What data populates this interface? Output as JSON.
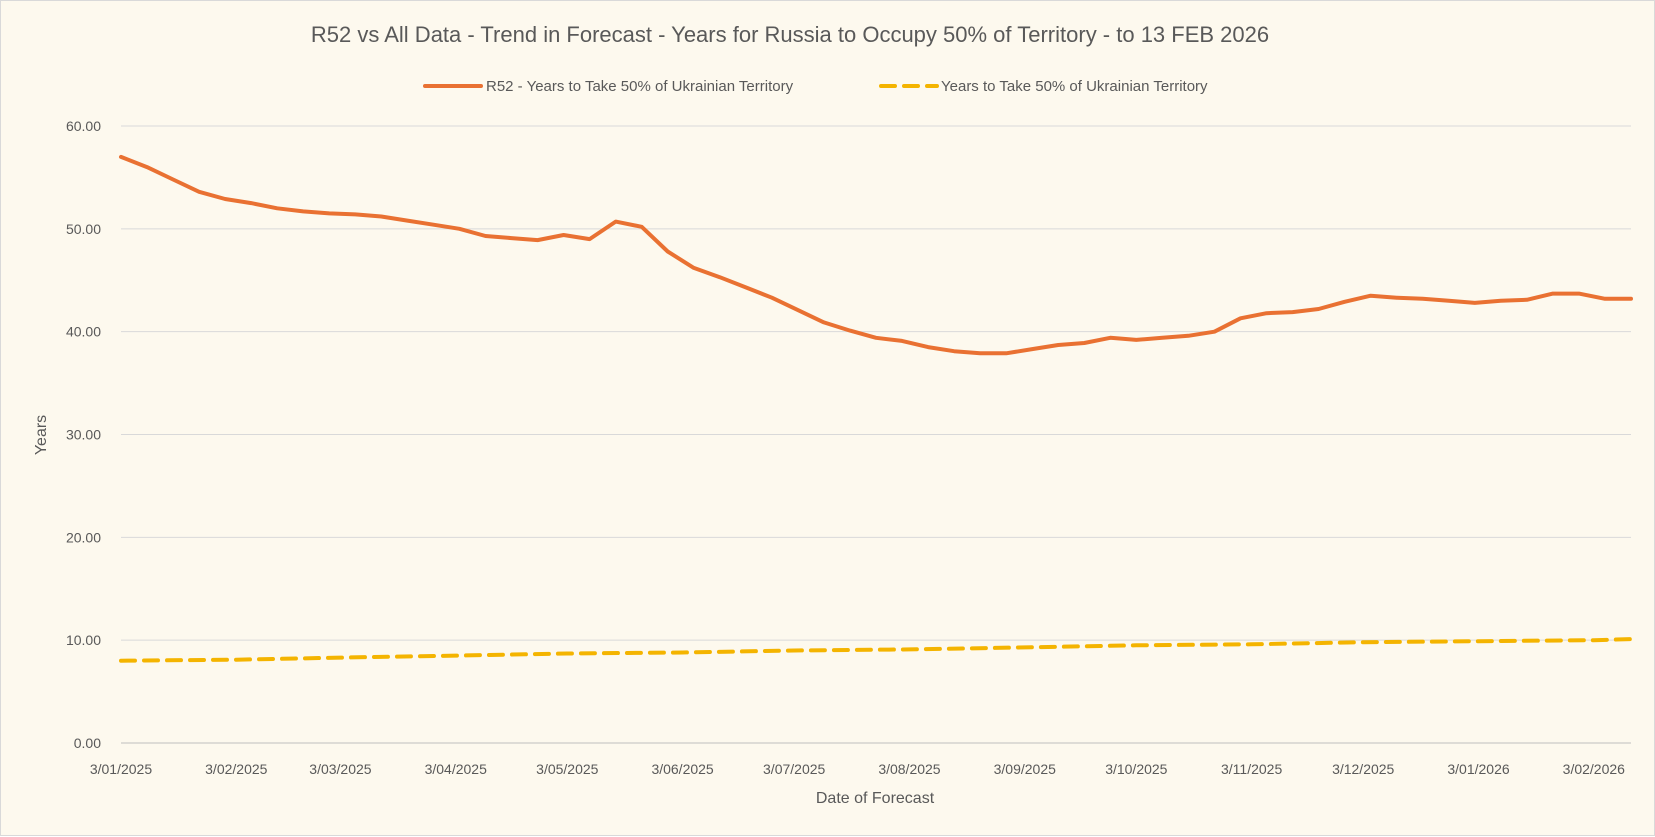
{
  "chart_data": {
    "type": "line",
    "title": "R52 vs All Data  - Trend in Forecast - Years for Russia to Occupy 50% of Territory - to 13 FEB 2026",
    "xlabel": "Date of Forecast",
    "ylabel": "Years",
    "ylim": [
      0,
      60
    ],
    "y_ticks": [
      "0.00",
      "10.00",
      "20.00",
      "30.00",
      "40.00",
      "50.00",
      "60.00"
    ],
    "x_range": [
      "2025-01-03",
      "2026-02-13"
    ],
    "x_ticks": [
      {
        "date": "2025-01-03",
        "label": "3/01/2025"
      },
      {
        "date": "2025-02-03",
        "label": "3/02/2025"
      },
      {
        "date": "2025-03-03",
        "label": "3/03/2025"
      },
      {
        "date": "2025-04-03",
        "label": "3/04/2025"
      },
      {
        "date": "2025-05-03",
        "label": "3/05/2025"
      },
      {
        "date": "2025-06-03",
        "label": "3/06/2025"
      },
      {
        "date": "2025-07-03",
        "label": "3/07/2025"
      },
      {
        "date": "2025-08-03",
        "label": "3/08/2025"
      },
      {
        "date": "2025-09-03",
        "label": "3/09/2025"
      },
      {
        "date": "2025-10-03",
        "label": "3/10/2025"
      },
      {
        "date": "2025-11-03",
        "label": "3/11/2025"
      },
      {
        "date": "2025-12-03",
        "label": "3/12/2025"
      },
      {
        "date": "2026-01-03",
        "label": "3/01/2026"
      },
      {
        "date": "2026-02-03",
        "label": "3/02/2026"
      }
    ],
    "grid": true,
    "legend_position": "top",
    "series": [
      {
        "name": "R52 - Years to Take  50% of Ukrainian Territory",
        "color": "#e97132",
        "style": "solid",
        "points": [
          [
            "2025-01-03",
            57.0
          ],
          [
            "2025-01-10",
            56.0
          ],
          [
            "2025-01-17",
            54.8
          ],
          [
            "2025-01-24",
            53.6
          ],
          [
            "2025-01-31",
            52.9
          ],
          [
            "2025-02-07",
            52.5
          ],
          [
            "2025-02-14",
            52.0
          ],
          [
            "2025-02-21",
            51.7
          ],
          [
            "2025-02-28",
            51.5
          ],
          [
            "2025-03-07",
            51.4
          ],
          [
            "2025-03-14",
            51.2
          ],
          [
            "2025-03-21",
            50.8
          ],
          [
            "2025-03-28",
            50.4
          ],
          [
            "2025-04-04",
            50.0
          ],
          [
            "2025-04-11",
            49.3
          ],
          [
            "2025-04-18",
            49.1
          ],
          [
            "2025-04-25",
            48.9
          ],
          [
            "2025-05-02",
            49.4
          ],
          [
            "2025-05-09",
            49.0
          ],
          [
            "2025-05-16",
            50.7
          ],
          [
            "2025-05-23",
            50.2
          ],
          [
            "2025-05-30",
            47.8
          ],
          [
            "2025-06-06",
            46.2
          ],
          [
            "2025-06-13",
            45.3
          ],
          [
            "2025-06-20",
            44.3
          ],
          [
            "2025-06-27",
            43.3
          ],
          [
            "2025-07-04",
            42.1
          ],
          [
            "2025-07-11",
            40.9
          ],
          [
            "2025-07-18",
            40.1
          ],
          [
            "2025-07-25",
            39.4
          ],
          [
            "2025-08-01",
            39.1
          ],
          [
            "2025-08-08",
            38.5
          ],
          [
            "2025-08-15",
            38.1
          ],
          [
            "2025-08-22",
            37.9
          ],
          [
            "2025-08-29",
            37.9
          ],
          [
            "2025-09-05",
            38.3
          ],
          [
            "2025-09-12",
            38.7
          ],
          [
            "2025-09-19",
            38.9
          ],
          [
            "2025-09-26",
            39.4
          ],
          [
            "2025-10-03",
            39.2
          ],
          [
            "2025-10-10",
            39.4
          ],
          [
            "2025-10-17",
            39.6
          ],
          [
            "2025-10-24",
            40.0
          ],
          [
            "2025-10-31",
            41.3
          ],
          [
            "2025-11-07",
            41.8
          ],
          [
            "2025-11-14",
            41.9
          ],
          [
            "2025-11-21",
            42.2
          ],
          [
            "2025-11-28",
            42.9
          ],
          [
            "2025-12-05",
            43.5
          ],
          [
            "2025-12-12",
            43.3
          ],
          [
            "2025-12-19",
            43.2
          ],
          [
            "2025-12-26",
            43.0
          ],
          [
            "2026-01-02",
            42.8
          ],
          [
            "2026-01-09",
            43.0
          ],
          [
            "2026-01-16",
            43.1
          ],
          [
            "2026-01-23",
            43.7
          ],
          [
            "2026-01-30",
            43.7
          ],
          [
            "2026-02-06",
            43.2
          ],
          [
            "2026-02-13",
            43.2
          ]
        ]
      },
      {
        "name": "Years to Take  50% of Ukrainian Territory",
        "color": "#f4b400",
        "style": "dashed",
        "points": [
          [
            "2025-01-03",
            8.0
          ],
          [
            "2025-02-03",
            8.1
          ],
          [
            "2025-03-03",
            8.3
          ],
          [
            "2025-04-03",
            8.5
          ],
          [
            "2025-05-03",
            8.7
          ],
          [
            "2025-06-03",
            8.8
          ],
          [
            "2025-07-03",
            9.0
          ],
          [
            "2025-08-03",
            9.1
          ],
          [
            "2025-09-03",
            9.3
          ],
          [
            "2025-10-03",
            9.5
          ],
          [
            "2025-11-03",
            9.6
          ],
          [
            "2025-12-03",
            9.8
          ],
          [
            "2026-01-03",
            9.9
          ],
          [
            "2026-02-03",
            10.0
          ],
          [
            "2026-02-13",
            10.1
          ]
        ]
      }
    ]
  }
}
